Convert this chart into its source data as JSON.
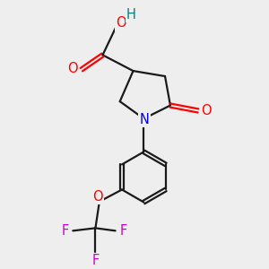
{
  "background_color": "#eeeeee",
  "bond_color": "#1a1a1a",
  "oxygen_color": "#ff0000",
  "nitrogen_color": "#0000dd",
  "fluorine_color": "#cc00cc",
  "hydrogen_color": "#008080",
  "line_width": 1.6,
  "font_size": 10.5,
  "figsize": [
    3.0,
    3.0
  ],
  "dpi": 100,
  "xlim": [
    0,
    10
  ],
  "ylim": [
    0,
    10
  ]
}
